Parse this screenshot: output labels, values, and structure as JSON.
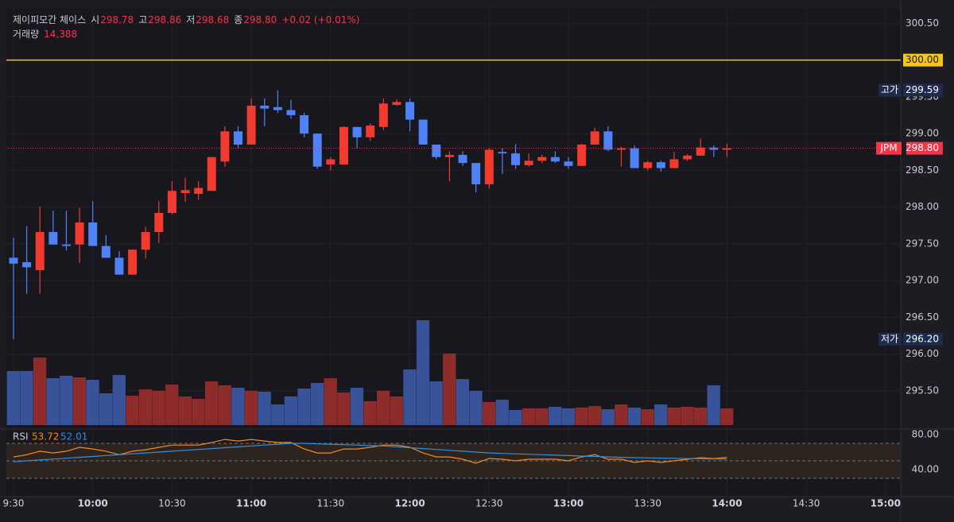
{
  "header": {
    "name": "제이피모간 체이스",
    "open_label": "시",
    "open": "298.78",
    "high_label": "고",
    "high": "298.86",
    "low_label": "저",
    "low": "298.68",
    "close_label": "종",
    "close": "298.80",
    "change": "+0.02 (+0.01%)",
    "volume_label": "거래량",
    "volume": "14,388"
  },
  "chart_data": [
    {
      "type": "candlestick",
      "categories": [
        null,
        null,
        null,
        null,
        null,
        null,
        null,
        null,
        null,
        null,
        null,
        null,
        null,
        null,
        null,
        null,
        null,
        null,
        null,
        null,
        null,
        null,
        null,
        null,
        null,
        null,
        null,
        null,
        null,
        null,
        null,
        null,
        null,
        null,
        null,
        null,
        null,
        null,
        null,
        null,
        null,
        null,
        null,
        null,
        null,
        null,
        null,
        null,
        null,
        null,
        null,
        null,
        null,
        null,
        null
      ],
      "open": [
        297.31,
        297.25,
        297.14,
        297.66,
        297.49,
        297.49,
        297.79,
        297.47,
        297.31,
        297.08,
        297.42,
        297.66,
        297.92,
        298.19,
        298.18,
        298.22,
        298.62,
        299.03,
        298.85,
        299.38,
        299.36,
        299.32,
        299.25,
        299.0,
        298.58,
        298.58,
        299.09,
        298.95,
        299.09,
        299.39,
        299.43,
        299.19,
        298.85,
        298.68,
        298.71,
        298.6,
        298.31,
        298.75,
        298.73,
        298.57,
        298.63,
        298.68,
        298.62,
        298.56,
        298.85,
        299.03,
        298.78,
        298.8,
        298.53,
        298.61,
        298.53,
        298.65,
        298.7,
        298.81,
        298.78
      ],
      "high": [
        297.58,
        297.74,
        298.01,
        297.95,
        297.95,
        297.99,
        298.08,
        297.62,
        297.4,
        297.42,
        297.73,
        298.08,
        298.35,
        298.4,
        298.35,
        298.68,
        299.1,
        299.1,
        299.48,
        299.48,
        299.59,
        299.46,
        299.28,
        299.0,
        298.68,
        299.1,
        299.09,
        299.14,
        299.48,
        299.47,
        299.48,
        299.19,
        298.85,
        298.76,
        298.76,
        298.6,
        298.8,
        298.8,
        298.86,
        298.73,
        298.71,
        298.76,
        298.68,
        298.86,
        299.08,
        299.1,
        298.82,
        298.84,
        298.63,
        298.63,
        298.75,
        298.72,
        298.93,
        298.84,
        298.86
      ],
      "low": [
        296.2,
        296.82,
        296.82,
        297.49,
        297.41,
        297.24,
        297.47,
        297.31,
        297.08,
        297.08,
        297.3,
        297.51,
        297.9,
        298.07,
        298.1,
        298.22,
        298.55,
        298.8,
        298.85,
        299.1,
        299.28,
        299.2,
        298.95,
        298.52,
        298.5,
        298.58,
        298.8,
        298.9,
        299.05,
        299.38,
        299.03,
        298.85,
        298.65,
        298.35,
        298.56,
        298.2,
        298.25,
        298.45,
        298.52,
        298.55,
        298.6,
        298.6,
        298.52,
        298.56,
        298.85,
        298.76,
        298.55,
        298.53,
        298.5,
        298.48,
        298.53,
        298.63,
        298.7,
        298.68,
        298.68
      ],
      "close": [
        297.23,
        297.18,
        297.66,
        297.49,
        297.47,
        297.79,
        297.47,
        297.31,
        297.08,
        297.42,
        297.66,
        297.92,
        298.22,
        298.23,
        298.26,
        298.68,
        299.03,
        298.85,
        299.38,
        299.34,
        299.32,
        299.25,
        299.0,
        298.55,
        298.65,
        299.09,
        298.95,
        299.11,
        299.41,
        299.43,
        299.19,
        298.85,
        298.68,
        298.71,
        298.6,
        298.31,
        298.78,
        298.73,
        298.57,
        298.63,
        298.68,
        298.62,
        298.56,
        298.85,
        299.03,
        298.78,
        298.8,
        298.53,
        298.61,
        298.53,
        298.65,
        298.7,
        298.81,
        298.78,
        298.8
      ],
      "up_color": "#f23a2f",
      "down_color": "#4f82f7",
      "ylim": [
        295.0,
        300.71
      ],
      "yticks": [
        {
          "value": 295.5,
          "label": "295.50"
        },
        {
          "value": 296,
          "label": "296.00"
        },
        {
          "value": 296.5,
          "label": "296.50"
        },
        {
          "value": 297,
          "label": "297.00"
        },
        {
          "value": 297.5,
          "label": "297.50"
        },
        {
          "value": 298,
          "label": "298.00"
        },
        {
          "value": 298.5,
          "label": "298.50"
        },
        {
          "value": 299,
          "label": "299.00"
        },
        {
          "value": 299.5,
          "label": "299.50"
        },
        {
          "value": 300.5,
          "label": "300.50"
        }
      ],
      "xlim": [
        -0.54,
        67.15
      ],
      "xticks": [
        {
          "value": 0,
          "label": "9:30"
        },
        {
          "value": 6,
          "label": "10:00"
        },
        {
          "value": 12,
          "label": "10:30"
        },
        {
          "value": 18,
          "label": "11:00"
        },
        {
          "value": 24,
          "label": "11:30"
        },
        {
          "value": 30,
          "label": "12:00"
        },
        {
          "value": 36,
          "label": "12:30"
        },
        {
          "value": 42,
          "label": "13:00"
        },
        {
          "value": 48,
          "label": "13:30"
        },
        {
          "value": 54,
          "label": "14:00"
        },
        {
          "value": 60,
          "label": "14:30"
        },
        {
          "value": 66,
          "label": "15:00"
        }
      ],
      "price_lines": [
        {
          "value": 300,
          "label": "300.00",
          "color": "#f5c518",
          "style": "solid"
        },
        {
          "name": "JPM",
          "value": 298.8,
          "label": "298.80",
          "color": "#f23645",
          "style": "dotted"
        }
      ],
      "annotations": [
        {
          "name": "고가",
          "value": 299.59,
          "label": "299.59"
        },
        {
          "name": "저가",
          "value": 296.2,
          "label": "296.20"
        }
      ]
    },
    {
      "type": "volume",
      "values": [
        46600,
        46600,
        58200,
        40400,
        42500,
        41100,
        39000,
        27400,
        43200,
        25300,
        30800,
        29500,
        34900,
        24700,
        22600,
        37700,
        34300,
        32200,
        29500,
        28800,
        17800,
        24700,
        31500,
        36300,
        40400,
        28100,
        32200,
        20600,
        29500,
        24700,
        48000,
        90400,
        37700,
        61700,
        39700,
        29500,
        19900,
        21900,
        13000,
        14400,
        14400,
        15800,
        14400,
        15100,
        16400,
        13700,
        17800,
        15100,
        13700,
        17800,
        15100,
        15800,
        15100,
        34300,
        14388
      ],
      "up_color": "#8e2b2b",
      "down_color": "#39539a",
      "ylim": [
        0,
        90400
      ]
    },
    {
      "type": "line",
      "title": "RSI",
      "series": [
        {
          "color": "#f08a24",
          "values": [
            54.5,
            57,
            61,
            59,
            61,
            65.5,
            63.6,
            61,
            57,
            61,
            62.7,
            65.5,
            68,
            68,
            68,
            71,
            74.5,
            72.7,
            74.5,
            72.7,
            71,
            71,
            63.6,
            59,
            59,
            63.6,
            63.6,
            65.5,
            68,
            68,
            65.5,
            59,
            54.5,
            54.5,
            51.8,
            47.3,
            52.7,
            51.8,
            50,
            51.8,
            51.8,
            51.8,
            50,
            54.5,
            57,
            51.8,
            51.8,
            48.2,
            50,
            48.2,
            50,
            51.8,
            53.6,
            52.7,
            53.72
          ]
        },
        {
          "color": "#2f8fe0",
          "values": [
            49,
            50,
            51,
            52,
            53,
            54,
            55,
            56,
            57,
            58,
            59,
            60,
            61,
            62,
            63,
            64,
            65,
            66,
            67,
            68,
            69,
            70,
            70,
            69.5,
            69,
            68.5,
            68,
            67.5,
            67,
            66,
            65,
            64,
            63,
            62,
            61,
            60,
            59,
            58.5,
            58,
            57.5,
            57,
            56.5,
            56,
            55.5,
            55,
            54.5,
            54,
            53.7,
            53.4,
            53.1,
            52.8,
            52.6,
            52.4,
            52.2,
            52.01
          ]
        }
      ],
      "ylim": [
        9.1,
        86.4
      ],
      "yticks": [
        {
          "value": 80,
          "label": "80.00"
        },
        {
          "value": 40,
          "label": "40.00"
        }
      ],
      "band": [
        30,
        70
      ],
      "guide_lines": [
        70,
        50,
        30
      ]
    }
  ]
}
